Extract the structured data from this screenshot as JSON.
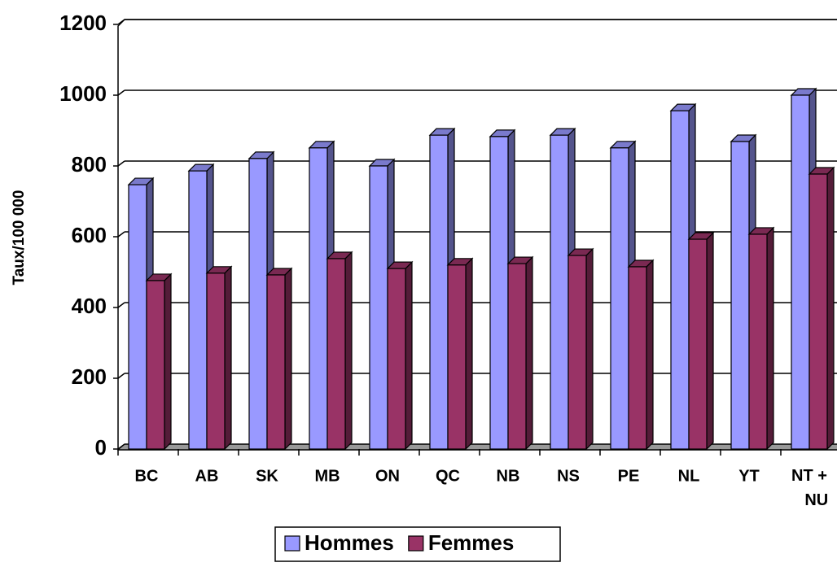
{
  "chart_data": {
    "type": "bar3d",
    "y_label": "Taux/100 000",
    "categories": [
      "BC",
      "AB",
      "SK",
      "MB",
      "ON",
      "QC",
      "NB",
      "NS",
      "PE",
      "NL",
      "YT",
      "NT + NU"
    ],
    "series": [
      {
        "name": "Hommes",
        "color": "#9999ff",
        "values": [
          747,
          786,
          821,
          851,
          800,
          887,
          883,
          887,
          851,
          956,
          869,
          1000
        ]
      },
      {
        "name": "Femmes",
        "color": "#993366",
        "values": [
          476,
          497,
          492,
          538,
          510,
          520,
          524,
          547,
          515,
          593,
          607,
          777
        ]
      }
    ],
    "ylim": [
      0,
      1200
    ],
    "yticks": [
      0,
      200,
      400,
      600,
      800,
      1000,
      1200
    ],
    "grid": true,
    "legend": "bottom"
  }
}
